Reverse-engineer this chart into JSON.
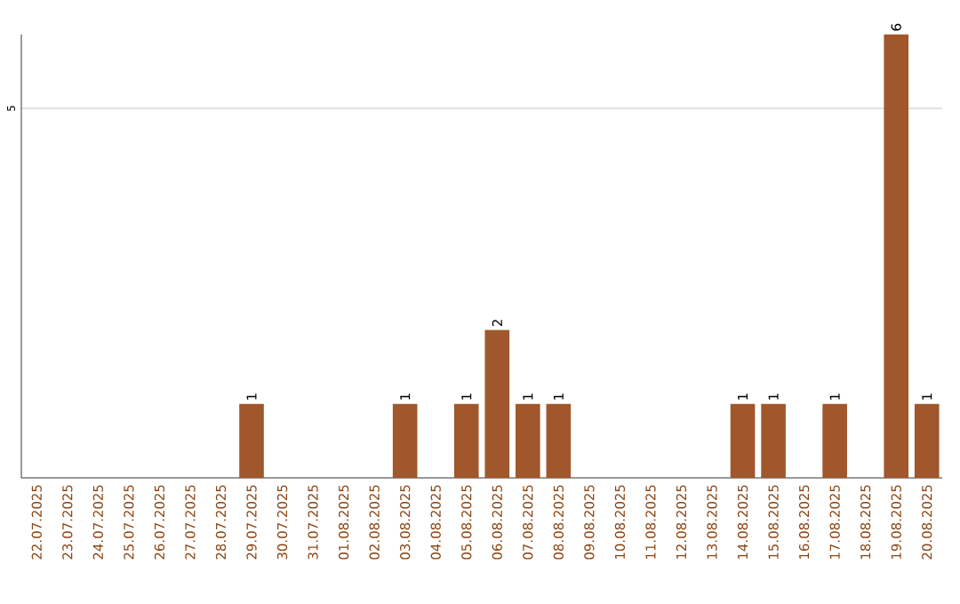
{
  "chart_data": {
    "type": "bar",
    "categories": [
      "22.07.2025",
      "23.07.2025",
      "24.07.2025",
      "25.07.2025",
      "26.07.2025",
      "27.07.2025",
      "28.07.2025",
      "29.07.2025",
      "30.07.2025",
      "31.07.2025",
      "01.08.2025",
      "02.08.2025",
      "03.08.2025",
      "04.08.2025",
      "05.08.2025",
      "06.08.2025",
      "07.08.2025",
      "08.08.2025",
      "09.08.2025",
      "10.08.2025",
      "11.08.2025",
      "12.08.2025",
      "13.08.2025",
      "14.08.2025",
      "15.08.2025",
      "16.08.2025",
      "17.08.2025",
      "18.08.2025",
      "19.08.2025",
      "20.08.2025"
    ],
    "values": [
      0,
      0,
      0,
      0,
      0,
      0,
      0,
      1,
      0,
      0,
      0,
      0,
      1,
      0,
      1,
      2,
      1,
      1,
      0,
      0,
      0,
      0,
      0,
      1,
      1,
      0,
      1,
      0,
      6,
      1
    ],
    "value_labels": [
      null,
      null,
      null,
      null,
      null,
      null,
      null,
      "1",
      null,
      null,
      null,
      null,
      "1",
      null,
      "1",
      "2",
      "1",
      "1",
      null,
      null,
      null,
      null,
      null,
      "1",
      "1",
      null,
      "1",
      null,
      "6",
      "1"
    ],
    "color": "#a0572b",
    "ylim": [
      0,
      6
    ],
    "yticks": [
      5
    ],
    "grid": "y"
  }
}
